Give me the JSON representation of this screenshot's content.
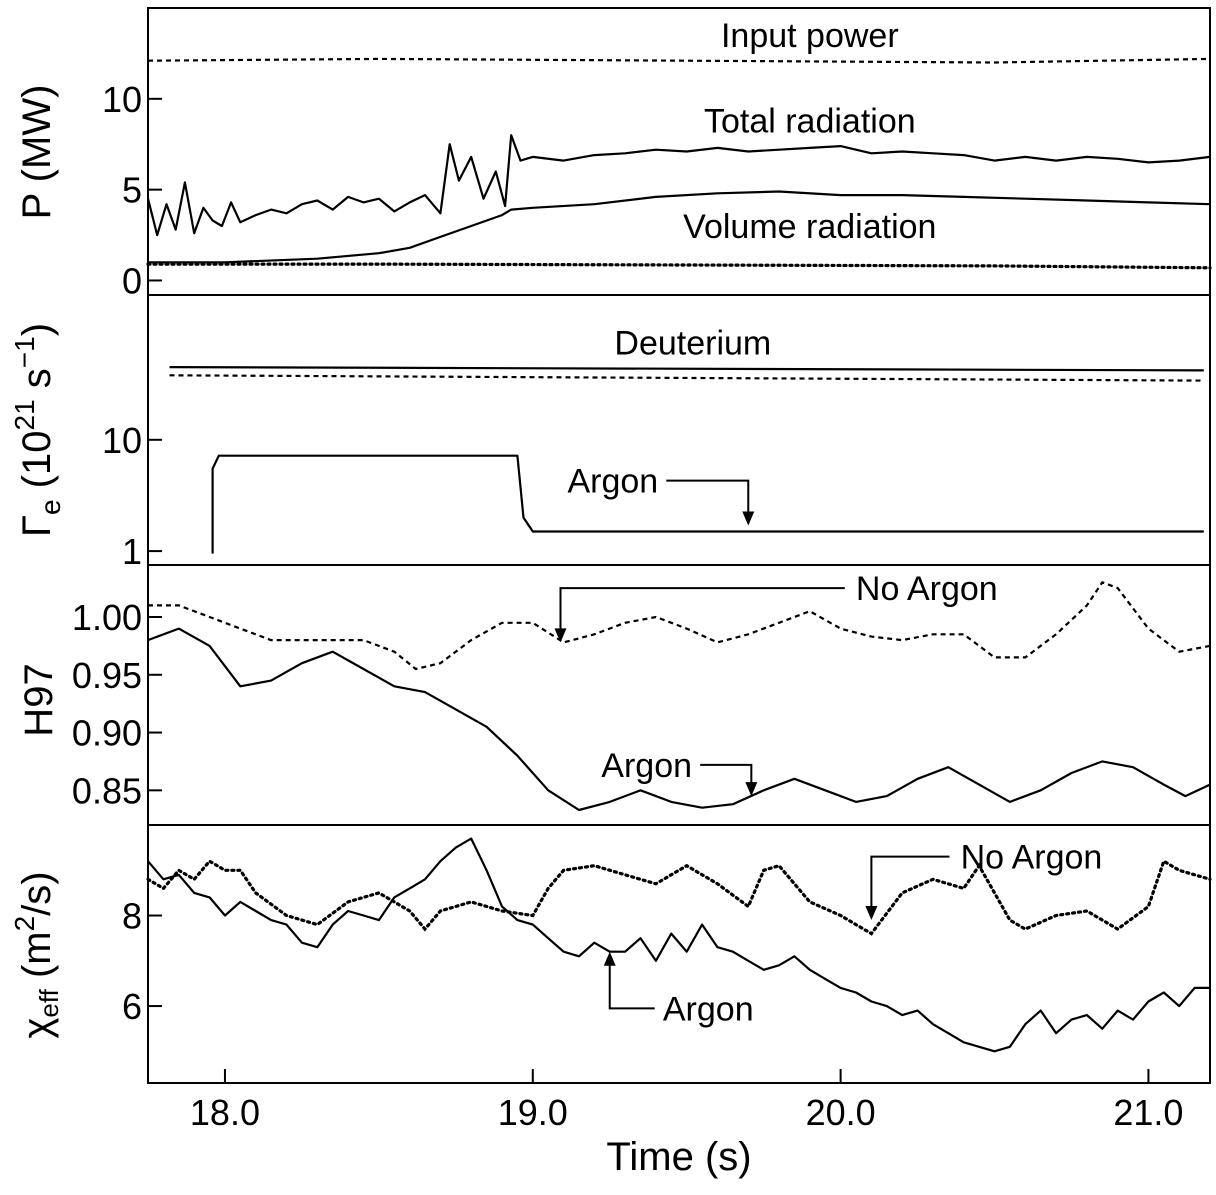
{
  "chart_data": {
    "type": "line",
    "x_label": "Time (s)",
    "x_ticks": [
      18.0,
      19.0,
      20.0,
      21.0
    ],
    "x_tick_labels": [
      "18.0",
      "19.0",
      "20.0",
      "21.0"
    ],
    "xlim": [
      17.75,
      21.2
    ],
    "panels": [
      {
        "name": "power",
        "ylabel": "P (MW)",
        "ylim": [
          -0.8,
          15
        ],
        "yticks": [
          0,
          5,
          10
        ],
        "ytick_labels": [
          "0",
          "5",
          "10"
        ],
        "series": [
          {
            "name": "Input power",
            "style": "dashed",
            "x": [
              17.75,
              18.5,
              19.5,
              20.5,
              21.2
            ],
            "y": [
              12.1,
              12.2,
              12.1,
              12.0,
              12.2
            ]
          },
          {
            "name": "Total radiation",
            "style": "solid",
            "x": [
              17.75,
              17.78,
              17.81,
              17.84,
              17.87,
              17.9,
              17.93,
              17.96,
              17.99,
              18.02,
              18.05,
              18.1,
              18.15,
              18.2,
              18.25,
              18.3,
              18.35,
              18.4,
              18.45,
              18.5,
              18.55,
              18.6,
              18.65,
              18.7,
              18.73,
              18.76,
              18.8,
              18.84,
              18.88,
              18.91,
              18.93,
              18.96,
              19.0,
              19.1,
              19.2,
              19.3,
              19.4,
              19.5,
              19.6,
              19.7,
              19.8,
              19.9,
              20.0,
              20.1,
              20.2,
              20.3,
              20.4,
              20.5,
              20.6,
              20.7,
              20.8,
              20.9,
              21.0,
              21.1,
              21.2
            ],
            "y": [
              4.5,
              2.5,
              4.2,
              2.8,
              5.4,
              2.6,
              4.0,
              3.3,
              3.0,
              4.3,
              3.2,
              3.6,
              3.9,
              3.7,
              4.2,
              4.4,
              3.9,
              4.6,
              4.3,
              4.5,
              3.8,
              4.3,
              4.7,
              3.7,
              7.5,
              5.5,
              6.8,
              4.5,
              6.0,
              4.1,
              8.0,
              6.6,
              6.8,
              6.6,
              6.9,
              7.0,
              7.2,
              7.1,
              7.3,
              7.1,
              7.2,
              7.3,
              7.4,
              7.0,
              7.1,
              7.0,
              6.9,
              6.6,
              6.8,
              6.6,
              6.8,
              6.7,
              6.5,
              6.6,
              6.8
            ]
          },
          {
            "name": "Volume radiation",
            "style": "solid",
            "x": [
              17.75,
              18.0,
              18.3,
              18.5,
              18.6,
              18.7,
              18.8,
              18.9,
              18.93,
              19.0,
              19.2,
              19.4,
              19.6,
              19.8,
              20.0,
              20.2,
              20.4,
              20.6,
              20.8,
              21.0,
              21.2
            ],
            "y": [
              1.0,
              1.0,
              1.2,
              1.5,
              1.8,
              2.4,
              3.0,
              3.6,
              3.9,
              4.0,
              4.2,
              4.6,
              4.8,
              4.9,
              4.7,
              4.7,
              4.6,
              4.5,
              4.4,
              4.3,
              4.2
            ]
          },
          {
            "name": "",
            "style": "dotted",
            "x": [
              17.75,
              18.5,
              19.5,
              20.5,
              21.2
            ],
            "y": [
              0.9,
              0.9,
              0.85,
              0.8,
              0.7
            ]
          }
        ],
        "annotations": [
          {
            "text": "Input power",
            "x": 19.9,
            "y": 13.5
          },
          {
            "text": "Total radiation",
            "x": 19.9,
            "y": 8.8
          },
          {
            "text": "Volume radiation",
            "x": 19.9,
            "y": 3.0
          }
        ]
      },
      {
        "name": "fueling",
        "ylabel_main": "Γ",
        "ylabel_sub": "e",
        "ylabel_rest": " (10",
        "ylabel_exp": "21",
        "ylabel_unit": " s",
        "ylabel_unit_exp": "−1",
        "ylabel_close": ")",
        "yscale": "log",
        "ylim": [
          0.75,
          200
        ],
        "yticks": [
          1,
          10
        ],
        "ytick_labels": [
          "1",
          "10"
        ],
        "series": [
          {
            "name": "Deuterium",
            "style": "solid",
            "x": [
              17.82,
              21.18
            ],
            "y": [
              45,
              42
            ]
          },
          {
            "name": "",
            "style": "dashed",
            "x": [
              17.82,
              21.18
            ],
            "y": [
              38,
              34
            ]
          },
          {
            "name": "Argon",
            "style": "solid",
            "x": [
              17.96,
              17.96,
              17.98,
              18.3,
              18.6,
              18.9,
              18.95,
              18.97,
              19.0,
              19.2,
              19.4,
              19.6,
              19.8,
              20.0,
              20.2,
              20.4,
              20.6,
              20.8,
              21.0,
              21.18
            ],
            "y": [
              0.95,
              5.5,
              7.2,
              7.2,
              7.2,
              7.2,
              7.2,
              2.0,
              1.5,
              1.5,
              1.5,
              1.5,
              1.5,
              1.5,
              1.5,
              1.5,
              1.5,
              1.5,
              1.5,
              1.5
            ]
          }
        ],
        "annotations": [
          {
            "text": "Deuterium",
            "x": 19.52,
            "y": 75
          },
          {
            "text": "Argon",
            "x": 19.26,
            "y": 4.3,
            "arrow_to": [
              19.7,
              1.7
            ]
          }
        ]
      },
      {
        "name": "confinement",
        "ylabel": "H97",
        "ylim": [
          0.82,
          1.045
        ],
        "yticks": [
          0.85,
          0.9,
          0.95,
          1.0
        ],
        "ytick_labels": [
          "0.85",
          "0.90",
          "0.95",
          "1.00"
        ],
        "series": [
          {
            "name": "No Argon",
            "style": "dashed",
            "x": [
              17.75,
              17.85,
              17.95,
              18.05,
              18.15,
              18.3,
              18.45,
              18.55,
              18.62,
              18.7,
              18.8,
              18.9,
              19.0,
              19.1,
              19.2,
              19.3,
              19.4,
              19.5,
              19.6,
              19.7,
              19.8,
              19.9,
              20.0,
              20.1,
              20.2,
              20.3,
              20.4,
              20.5,
              20.6,
              20.7,
              20.8,
              20.85,
              20.9,
              21.0,
              21.1,
              21.2
            ],
            "y": [
              1.01,
              1.01,
              1.0,
              0.99,
              0.98,
              0.98,
              0.98,
              0.97,
              0.955,
              0.96,
              0.98,
              0.995,
              0.995,
              0.978,
              0.985,
              0.995,
              1.0,
              0.99,
              0.978,
              0.985,
              0.995,
              1.005,
              0.99,
              0.983,
              0.98,
              0.985,
              0.985,
              0.965,
              0.965,
              0.985,
              1.01,
              1.03,
              1.025,
              0.99,
              0.97,
              0.975
            ]
          },
          {
            "name": "Argon",
            "style": "solid",
            "x": [
              17.75,
              17.85,
              17.95,
              18.05,
              18.15,
              18.25,
              18.35,
              18.45,
              18.55,
              18.65,
              18.75,
              18.85,
              18.95,
              19.05,
              19.15,
              19.25,
              19.35,
              19.45,
              19.55,
              19.65,
              19.75,
              19.85,
              19.95,
              20.05,
              20.15,
              20.25,
              20.35,
              20.45,
              20.55,
              20.65,
              20.75,
              20.85,
              20.95,
              21.05,
              21.12,
              21.2
            ],
            "y": [
              0.98,
              0.99,
              0.975,
              0.94,
              0.945,
              0.96,
              0.97,
              0.955,
              0.94,
              0.935,
              0.92,
              0.905,
              0.88,
              0.85,
              0.833,
              0.84,
              0.85,
              0.84,
              0.835,
              0.838,
              0.85,
              0.86,
              0.85,
              0.84,
              0.845,
              0.86,
              0.87,
              0.855,
              0.84,
              0.85,
              0.865,
              0.875,
              0.87,
              0.855,
              0.845,
              0.855
            ]
          }
        ],
        "annotations": [
          {
            "text": "No Argon",
            "x": 20.28,
            "y": 1.025,
            "arrow_to": [
              19.09,
              0.978
            ]
          },
          {
            "text": "Argon",
            "x": 19.37,
            "y": 0.872,
            "arrow_to": [
              19.71,
              0.845
            ]
          }
        ]
      },
      {
        "name": "diffusivity",
        "ylabel_main": "χ",
        "ylabel_sub": "eff",
        "ylabel_rest": " (m",
        "ylabel_exp": "2",
        "ylabel_unit": "/s)",
        "ylim": [
          4.3,
          10.0
        ],
        "yticks": [
          6,
          8
        ],
        "ytick_labels": [
          "6",
          "8"
        ],
        "series": [
          {
            "name": "No Argon",
            "style": "dotted",
            "x": [
              17.75,
              17.8,
              17.85,
              17.9,
              17.95,
              18.0,
              18.05,
              18.1,
              18.2,
              18.3,
              18.4,
              18.5,
              18.6,
              18.65,
              18.7,
              18.8,
              18.9,
              19.0,
              19.05,
              19.1,
              19.2,
              19.3,
              19.4,
              19.5,
              19.6,
              19.7,
              19.75,
              19.8,
              19.9,
              20.0,
              20.05,
              20.1,
              20.2,
              20.3,
              20.4,
              20.45,
              20.5,
              20.55,
              20.6,
              20.7,
              20.8,
              20.9,
              21.0,
              21.05,
              21.1,
              21.2
            ],
            "y": [
              8.8,
              8.6,
              9.0,
              8.8,
              9.2,
              9.0,
              9.0,
              8.5,
              8.0,
              7.8,
              8.3,
              8.5,
              8.1,
              7.7,
              8.1,
              8.3,
              8.1,
              8.0,
              8.6,
              9.0,
              9.1,
              8.9,
              8.7,
              9.1,
              8.7,
              8.2,
              9.0,
              9.1,
              8.3,
              8.0,
              7.8,
              7.6,
              8.5,
              8.8,
              8.6,
              9.1,
              8.5,
              7.9,
              7.7,
              8.0,
              8.1,
              7.7,
              8.2,
              9.2,
              9.0,
              8.8
            ]
          },
          {
            "name": "Argon",
            "style": "solid",
            "x": [
              17.75,
              17.8,
              17.85,
              17.9,
              17.95,
              18.0,
              18.05,
              18.1,
              18.15,
              18.2,
              18.25,
              18.3,
              18.35,
              18.4,
              18.45,
              18.5,
              18.55,
              18.6,
              18.65,
              18.7,
              18.75,
              18.8,
              18.85,
              18.9,
              18.95,
              19.0,
              19.05,
              19.1,
              19.15,
              19.2,
              19.25,
              19.3,
              19.35,
              19.4,
              19.45,
              19.5,
              19.55,
              19.6,
              19.65,
              19.7,
              19.75,
              19.8,
              19.85,
              19.9,
              19.95,
              20.0,
              20.05,
              20.1,
              20.15,
              20.2,
              20.25,
              20.3,
              20.35,
              20.4,
              20.45,
              20.5,
              20.55,
              20.6,
              20.65,
              20.7,
              20.75,
              20.8,
              20.85,
              20.9,
              20.95,
              21.0,
              21.05,
              21.1,
              21.15,
              21.2
            ],
            "y": [
              9.2,
              8.8,
              8.9,
              8.5,
              8.4,
              8.0,
              8.3,
              8.1,
              7.9,
              7.8,
              7.4,
              7.3,
              7.8,
              8.1,
              8.0,
              7.9,
              8.4,
              8.6,
              8.8,
              9.2,
              9.5,
              9.7,
              9.0,
              8.2,
              7.9,
              7.8,
              7.5,
              7.2,
              7.1,
              7.4,
              7.2,
              7.2,
              7.5,
              7.0,
              7.6,
              7.2,
              7.8,
              7.3,
              7.2,
              7.0,
              6.8,
              6.9,
              7.1,
              6.8,
              6.6,
              6.4,
              6.3,
              6.1,
              6.0,
              5.8,
              5.9,
              5.6,
              5.4,
              5.2,
              5.1,
              5.0,
              5.1,
              5.6,
              5.9,
              5.4,
              5.7,
              5.8,
              5.5,
              5.9,
              5.7,
              6.1,
              6.3,
              6.0,
              6.4,
              6.4
            ]
          }
        ],
        "annotations": [
          {
            "text": "No Argon",
            "x": 20.62,
            "y": 9.3,
            "arrow_to": [
              20.1,
              7.9
            ]
          },
          {
            "text": "Argon",
            "x": 19.57,
            "y": 5.95,
            "arrow_from": [
              19.25,
              7.2
            ]
          }
        ]
      }
    ]
  }
}
